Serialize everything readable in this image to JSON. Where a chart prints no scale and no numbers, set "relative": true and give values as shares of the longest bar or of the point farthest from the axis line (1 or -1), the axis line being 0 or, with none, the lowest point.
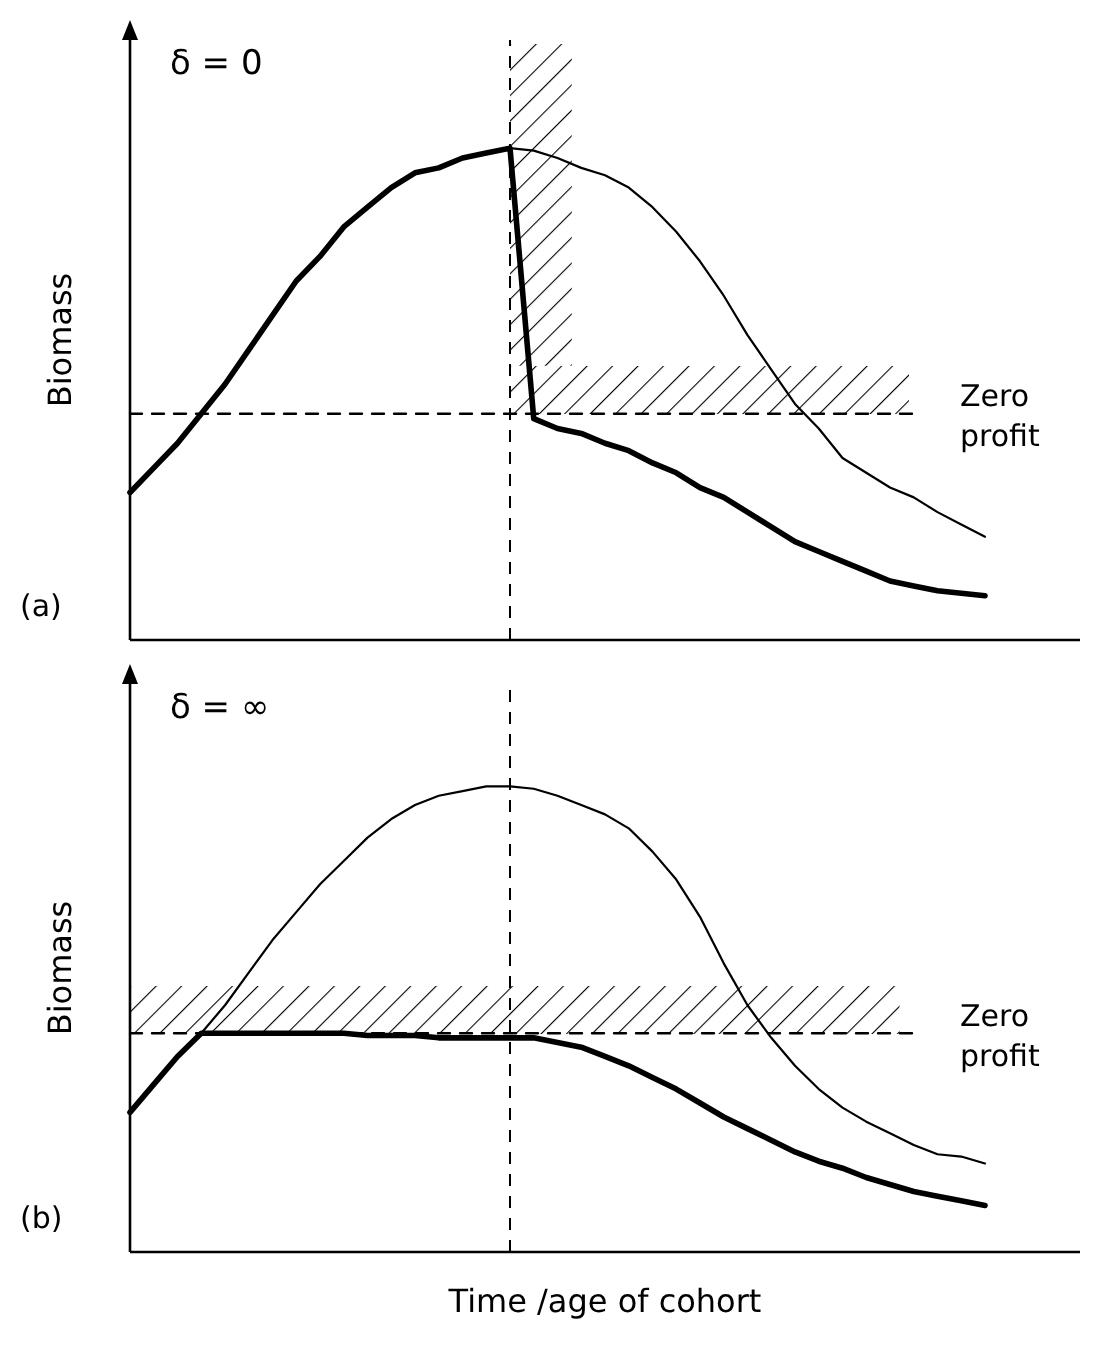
{
  "chart_data": [
    {
      "type": "line",
      "title": "δ = 0",
      "ylabel": "Biomass",
      "relative": true,
      "grid": false,
      "marker": "none",
      "line_style": "solid",
      "annotations": [
        "(a)",
        "Zero profit"
      ],
      "categories": [
        null,
        null,
        null,
        null,
        null,
        null,
        null,
        null,
        null,
        null,
        null,
        null,
        null,
        null,
        null,
        null,
        null,
        null,
        null,
        null,
        null,
        null,
        null,
        null,
        null,
        null,
        null,
        null,
        null,
        null,
        null,
        null,
        null,
        null,
        null,
        null,
        null,
        null,
        null,
        null,
        null
      ],
      "series": [
        {
          "color": "#000000",
          "line_style": "dashed",
          "values": [
            0.46,
            0.46,
            0.46,
            0.46,
            0.46,
            0.46,
            0.46,
            0.46,
            0.46,
            0.46,
            0.46,
            0.46,
            0.46,
            0.46,
            0.46,
            0.46,
            0.46,
            0.46,
            0.46,
            0.46,
            0.46,
            0.46,
            0.46,
            0.46,
            0.46,
            0.46,
            0.46,
            0.46,
            0.46,
            0.46,
            0.46,
            0.46,
            0.46,
            0.46,
            null,
            null,
            null,
            null,
            null,
            null,
            null
          ]
        },
        {
          "color": "#000000",
          "values": [
            null,
            null,
            null,
            null,
            null,
            null,
            null,
            null,
            null,
            null,
            null,
            null,
            null,
            null,
            null,
            null,
            1.0,
            0.995,
            0.98,
            0.96,
            0.945,
            0.92,
            0.88,
            0.83,
            0.77,
            0.7,
            0.62,
            0.55,
            0.48,
            0.43,
            0.37,
            0.34,
            0.31,
            0.29,
            0.26,
            0.235,
            0.21,
            null,
            null,
            null,
            null
          ]
        },
        {
          "color": "#000000",
          "values": [
            0.3,
            0.35,
            0.4,
            0.46,
            0.52,
            0.59,
            0.66,
            0.73,
            0.78,
            0.84,
            0.88,
            0.92,
            0.95,
            0.96,
            0.98,
            0.99,
            1.0,
            0.45,
            0.43,
            0.42,
            0.4,
            0.385,
            0.36,
            0.34,
            0.31,
            0.29,
            0.26,
            0.23,
            0.2,
            0.18,
            0.16,
            0.14,
            0.12,
            0.11,
            0.1,
            0.095,
            0.09,
            null,
            null,
            null,
            null
          ]
        }
      ]
    },
    {
      "type": "line",
      "title": "δ = ∞",
      "ylabel": "Biomass",
      "xlabel": "Time /age of cohort",
      "relative": true,
      "grid": false,
      "marker": "none",
      "line_style": "solid",
      "annotations": [
        "(b)",
        "Zero profit"
      ],
      "categories": [
        null,
        null,
        null,
        null,
        null,
        null,
        null,
        null,
        null,
        null,
        null,
        null,
        null,
        null,
        null,
        null,
        null,
        null,
        null,
        null,
        null,
        null,
        null,
        null,
        null,
        null,
        null,
        null,
        null,
        null,
        null,
        null,
        null,
        null,
        null,
        null,
        null,
        null,
        null,
        null,
        null
      ],
      "series": [
        {
          "color": "#000000",
          "line_style": "dashed",
          "values": [
            0.47,
            0.47,
            0.47,
            0.47,
            0.47,
            0.47,
            0.47,
            0.47,
            0.47,
            0.47,
            0.47,
            0.47,
            0.47,
            0.47,
            0.47,
            0.47,
            0.47,
            0.47,
            0.47,
            0.47,
            0.47,
            0.47,
            0.47,
            0.47,
            0.47,
            0.47,
            0.47,
            0.47,
            0.47,
            0.47,
            0.47,
            0.47,
            0.47,
            0.47,
            null,
            null,
            null,
            null,
            null,
            null,
            null
          ]
        },
        {
          "color": "#000000",
          "values": [
            null,
            null,
            null,
            0.47,
            0.53,
            0.6,
            0.67,
            0.73,
            0.79,
            0.84,
            0.89,
            0.93,
            0.96,
            0.98,
            0.99,
            1.0,
            1.0,
            0.995,
            0.98,
            0.96,
            0.94,
            0.91,
            0.86,
            0.8,
            0.72,
            0.62,
            0.53,
            0.46,
            0.4,
            0.35,
            0.31,
            0.28,
            0.255,
            0.23,
            0.21,
            0.205,
            0.19,
            null,
            null,
            null,
            null
          ]
        },
        {
          "color": "#000000",
          "values": [
            0.3,
            0.36,
            0.42,
            0.47,
            0.47,
            0.47,
            0.47,
            0.47,
            0.47,
            0.47,
            0.465,
            0.465,
            0.465,
            0.46,
            0.46,
            0.46,
            0.46,
            0.46,
            0.45,
            0.44,
            0.42,
            0.4,
            0.375,
            0.35,
            0.32,
            0.29,
            0.265,
            0.24,
            0.215,
            0.195,
            0.18,
            0.16,
            0.145,
            0.13,
            0.12,
            0.11,
            0.1,
            null,
            null,
            null,
            null
          ]
        }
      ]
    }
  ]
}
